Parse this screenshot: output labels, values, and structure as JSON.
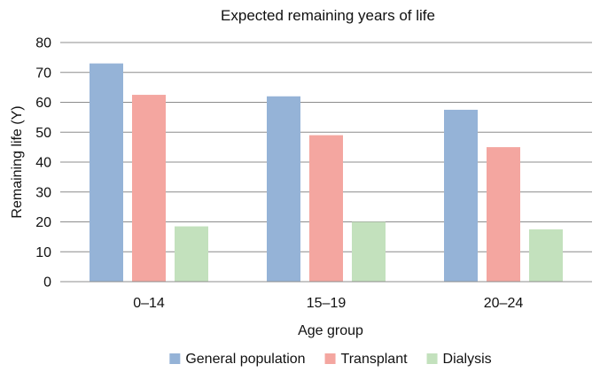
{
  "chart_data": {
    "type": "bar",
    "title": "Expected remaining years of life",
    "xlabel": "Age group",
    "ylabel": "Remaining life (Y)",
    "ylim": [
      0,
      80
    ],
    "yticks": [
      0,
      10,
      20,
      30,
      40,
      50,
      60,
      70,
      80
    ],
    "grid": true,
    "legend": "bottom",
    "categories": [
      "0–14",
      "15–19",
      "20–24"
    ],
    "series": [
      {
        "name": "General population",
        "color": "#95b3d7",
        "values": [
          73,
          62,
          57.5
        ]
      },
      {
        "name": "Transplant",
        "color": "#f4a6a0",
        "values": [
          62.5,
          49,
          45
        ]
      },
      {
        "name": "Dialysis",
        "color": "#c3e1bd",
        "values": [
          18.5,
          20,
          17.5
        ]
      }
    ]
  }
}
